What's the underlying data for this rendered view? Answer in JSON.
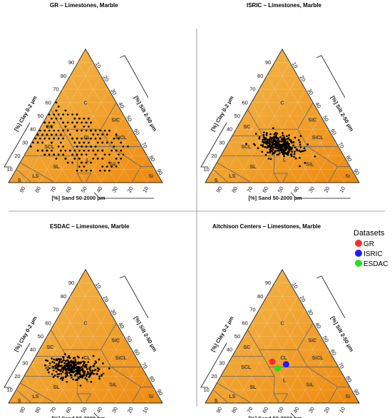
{
  "chart_data": [
    {
      "type": "scatter",
      "title": "GR – Limestones, Marble",
      "subtype": "soil texture triangle",
      "axes": {
        "clay": "[%] Clay 0-2 μm",
        "silt": "[%] Silt 2-50 μm",
        "sand": "[%] Sand 50-2000 μm"
      },
      "ticks": [
        "10",
        "20",
        "30",
        "40",
        "50",
        "60",
        "70",
        "80",
        "90"
      ],
      "classes": [
        "C",
        "SiC",
        "SC",
        "SiCL",
        "CL",
        "SCL",
        "SL",
        "SiL",
        "L",
        "LS",
        "S",
        "Si"
      ],
      "point_cloud": {
        "clay_range": [
          8,
          62
        ],
        "sand_range": [
          10,
          75
        ],
        "pattern": "grid",
        "n": 260
      }
    },
    {
      "type": "scatter",
      "title": "ISRIC – Limestones, Marble",
      "subtype": "soil texture triangle",
      "axes": {
        "clay": "[%] Clay 0-2 μm",
        "silt": "[%] Silt 2-50 μm",
        "sand": "[%] Sand 50-2000 μm"
      },
      "ticks": [
        "10",
        "20",
        "30",
        "40",
        "50",
        "60",
        "70",
        "80",
        "90"
      ],
      "classes": [
        "C",
        "SiC",
        "SC",
        "SiCL",
        "CL",
        "SCL",
        "SL",
        "SiL",
        "L",
        "LS",
        "S",
        "Si"
      ],
      "point_cloud": {
        "clay_center": 28,
        "sand_center": 38,
        "spread": 6,
        "n": 320
      }
    },
    {
      "type": "scatter",
      "title": "ESDAC – Limestones, Marble",
      "subtype": "soil texture triangle",
      "axes": {
        "clay": "[%] Clay 0-2 μm",
        "silt": "[%] Silt 2-50 μm",
        "sand": "[%] Sand 50-2000 μm"
      },
      "ticks": [
        "10",
        "20",
        "30",
        "40",
        "50",
        "60",
        "70",
        "80",
        "90"
      ],
      "classes": [
        "C",
        "SiC",
        "SC",
        "SiCL",
        "CL",
        "SCL",
        "SL",
        "SiL",
        "L",
        "LS",
        "S",
        "Si"
      ],
      "point_cloud": {
        "clay_center": 26,
        "sand_center": 44,
        "spread": 7,
        "n": 300
      }
    },
    {
      "type": "scatter",
      "title": "Aitchison Centers – Limestones, Marble",
      "subtype": "soil texture triangle",
      "axes": {
        "clay": "[%] Clay 0-2 μm",
        "silt": "[%] Silt 2-50 μm",
        "sand": "[%] Sand 50-2000 μm"
      },
      "ticks": [
        "10",
        "20",
        "30",
        "40",
        "50",
        "60",
        "70",
        "80",
        "90"
      ],
      "classes": [
        "C",
        "SiC",
        "SC",
        "SiCL",
        "CL",
        "SCL",
        "SL",
        "SiL",
        "L",
        "LS",
        "S",
        "Si"
      ],
      "legend": {
        "title": "Datasets",
        "position": "top-right"
      },
      "series": [
        {
          "name": "GR",
          "color": "#ff2a2a",
          "clay": 31,
          "sand": 41
        },
        {
          "name": "ISRIC",
          "color": "#1c1cff",
          "clay": 29,
          "sand": 33
        },
        {
          "name": "ESDAC",
          "color": "#22e022",
          "clay": 26,
          "sand": 40
        }
      ]
    }
  ],
  "colors": {
    "fill_light": "#f2b548",
    "fill_dark": "#ee8a10",
    "divider": "#888888"
  }
}
